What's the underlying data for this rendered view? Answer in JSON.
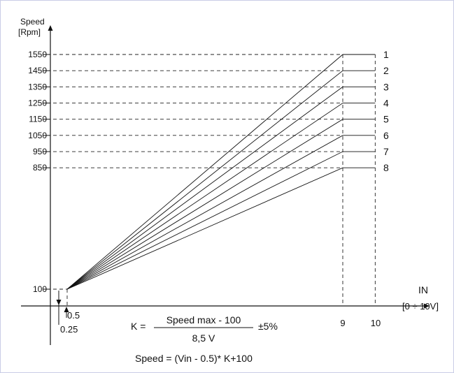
{
  "chart_data": {
    "type": "line",
    "ylabel_line1": "Speed",
    "ylabel_line2": "[Rpm]",
    "xlabel_line1": "IN",
    "xlabel_line2": "[0 ÷ 10V]",
    "ylim": [
      100,
      1550
    ],
    "xlim": [
      0.5,
      10
    ],
    "y_ticks": [
      100,
      850,
      950,
      1050,
      1150,
      1250,
      1350,
      1450,
      1550
    ],
    "x_ticks": [
      {
        "value": 9,
        "label": "9"
      },
      {
        "value": 10,
        "label": "10"
      }
    ],
    "low_annotations": [
      "0.5",
      "0.25"
    ],
    "series": [
      {
        "name": "1",
        "points": [
          [
            0.5,
            100
          ],
          [
            9,
            1550
          ],
          [
            10,
            1550
          ]
        ]
      },
      {
        "name": "2",
        "points": [
          [
            0.5,
            100
          ],
          [
            9,
            1450
          ],
          [
            10,
            1450
          ]
        ]
      },
      {
        "name": "3",
        "points": [
          [
            0.5,
            100
          ],
          [
            9,
            1350
          ],
          [
            10,
            1350
          ]
        ]
      },
      {
        "name": "4",
        "points": [
          [
            0.5,
            100
          ],
          [
            9,
            1250
          ],
          [
            10,
            1250
          ]
        ]
      },
      {
        "name": "5",
        "points": [
          [
            0.5,
            100
          ],
          [
            9,
            1150
          ],
          [
            10,
            1150
          ]
        ]
      },
      {
        "name": "6",
        "points": [
          [
            0.5,
            100
          ],
          [
            9,
            1050
          ],
          [
            10,
            1050
          ]
        ]
      },
      {
        "name": "7",
        "points": [
          [
            0.5,
            100
          ],
          [
            9,
            950
          ],
          [
            10,
            950
          ]
        ]
      },
      {
        "name": "8",
        "points": [
          [
            0.5,
            100
          ],
          [
            9,
            850
          ],
          [
            10,
            850
          ]
        ]
      }
    ],
    "formula": {
      "k_prefix": "K =",
      "numerator": "Speed max - 100",
      "denominator": "8,5 V",
      "tolerance": "±5%",
      "speed": "Speed = (Vin - 0.5)* K+100"
    }
  }
}
